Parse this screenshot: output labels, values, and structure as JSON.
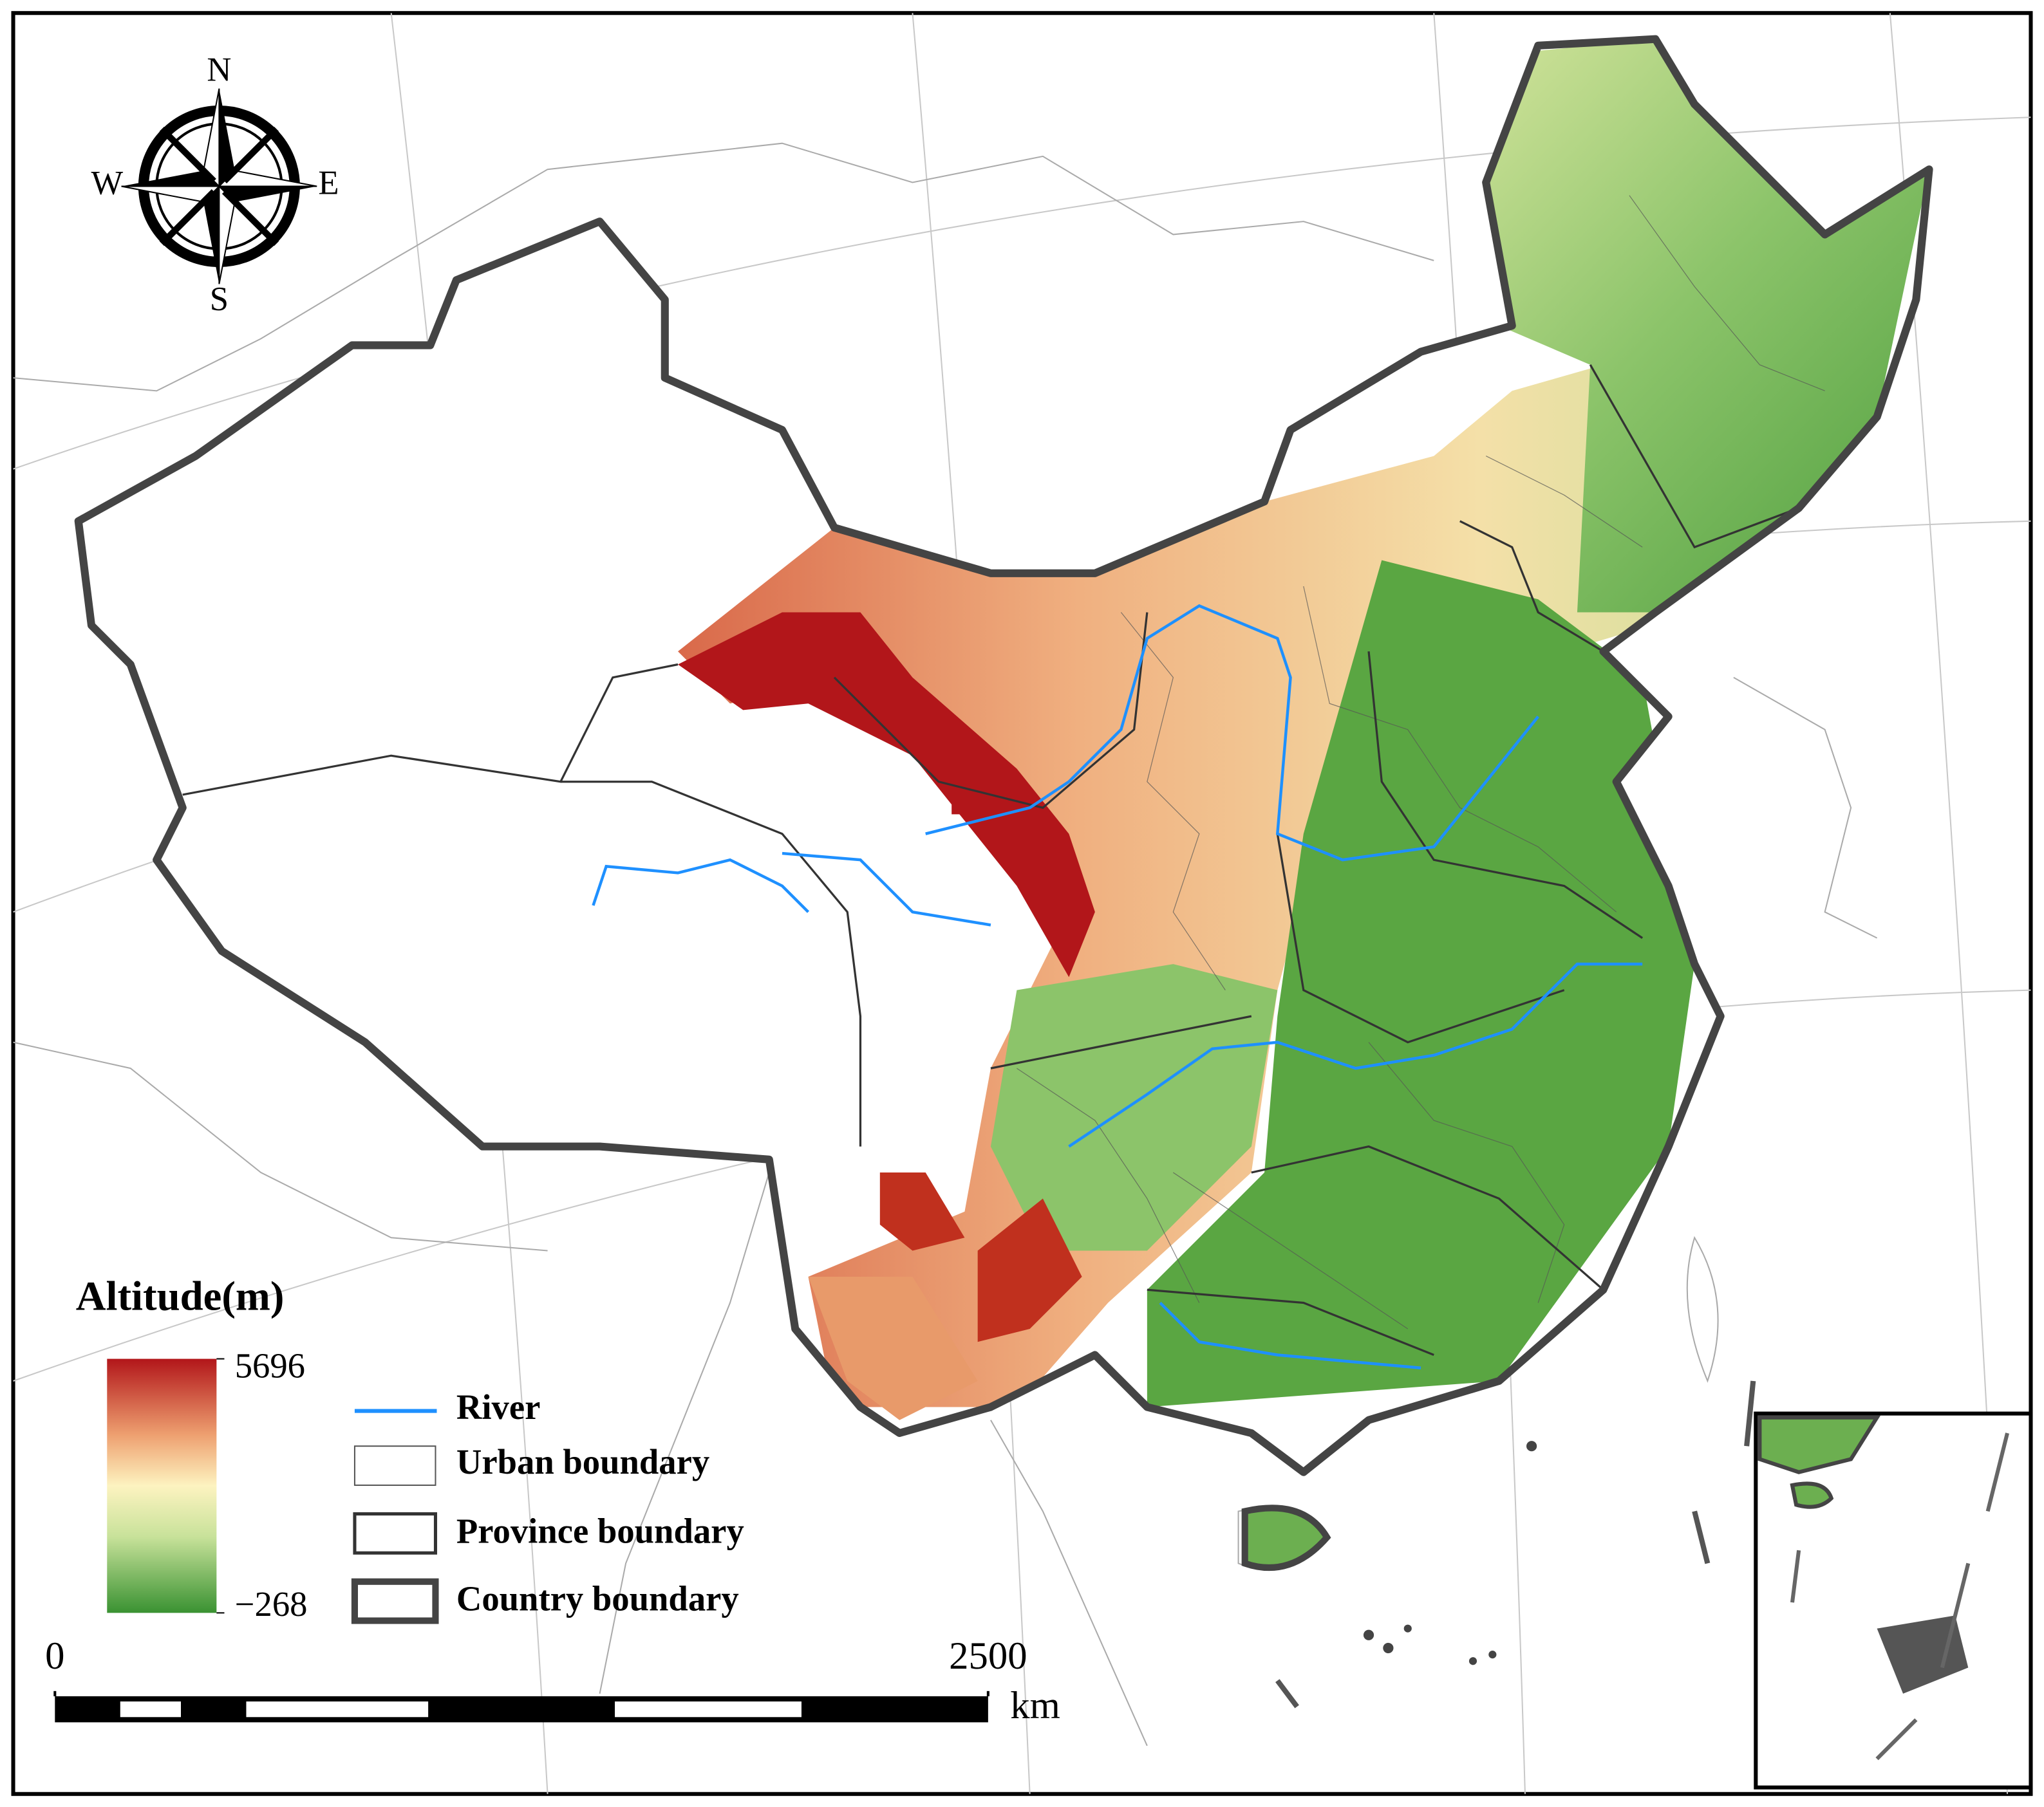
{
  "compass": {
    "north": "N",
    "south": "S",
    "west": "W",
    "east": "E"
  },
  "legend": {
    "title": "Altitude(m)",
    "colorbar": {
      "max": 5696,
      "min": {
        "value": -268,
        "label": "−268"
      }
    },
    "items": [
      "River",
      "Urban boundary",
      "Province boundary",
      "Country boundary"
    ]
  },
  "scale_bar": {
    "start": 0,
    "end": 2500,
    "unit": "km"
  }
}
